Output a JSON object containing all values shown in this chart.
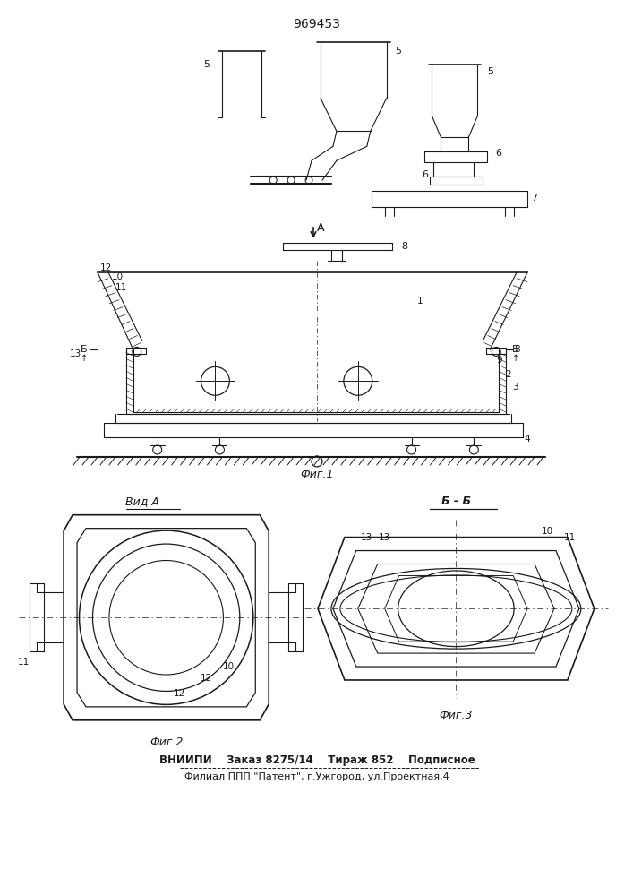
{
  "title": "969453",
  "fig_caption1": "Фиг.1",
  "fig_caption2": "Фиг.2",
  "fig_caption3": "Фиг.3",
  "view_label": "Вид А",
  "section_label": "Б - Б",
  "bottom_text1": "ВНИИПИ    Заказ 8275/14    Тираж 852    Подписное",
  "bottom_text2": "Филиал ППП \"Патент\", г.Ужгород, ул.Проектная,4",
  "bg_color": "#ffffff",
  "line_color": "#1a1a1a"
}
